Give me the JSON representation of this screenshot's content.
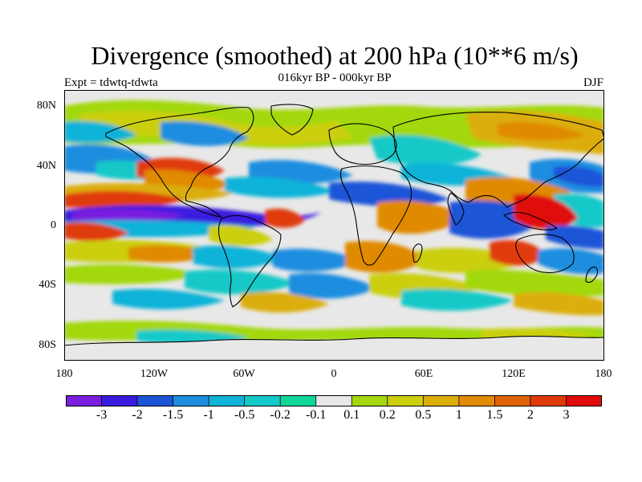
{
  "title": "Divergence (smoothed) at 200 hPa (10**6 m/s)",
  "subtitle": "016kyr BP - 000kyr BP",
  "experiment": "Expt = tdwtq-tdwta",
  "season": "DJF",
  "map": {
    "lat_labels": [
      "80N",
      "40N",
      "0",
      "40S",
      "80S"
    ],
    "lon_labels": [
      "180",
      "120W",
      "60W",
      "0",
      "60E",
      "120E",
      "180"
    ]
  },
  "colorbar": {
    "labels": [
      "-3",
      "-2",
      "-1.5",
      "-1",
      "-0.5",
      "-0.2",
      "-0.1",
      "0.1",
      "0.2",
      "0.5",
      "1",
      "1.5",
      "2",
      "3"
    ],
    "colors": [
      "#7a1fe0",
      "#3a1ce0",
      "#1c55d8",
      "#1d8ddf",
      "#10b3d8",
      "#12c9c8",
      "#10d69a",
      "#e8e8e8",
      "#a3d80e",
      "#cbcf0c",
      "#dcae08",
      "#e08a06",
      "#e06206",
      "#e03a0c",
      "#e00a0a"
    ]
  },
  "palette": {
    "background": "#e8e8e8",
    "negative_strong": "#3a1ce0",
    "negative_mid": "#1d8ddf",
    "negative_weak": "#12c9c8",
    "positive_weak": "#a3d80e",
    "positive_mid": "#dcae08",
    "positive_strong": "#e03a0c"
  }
}
